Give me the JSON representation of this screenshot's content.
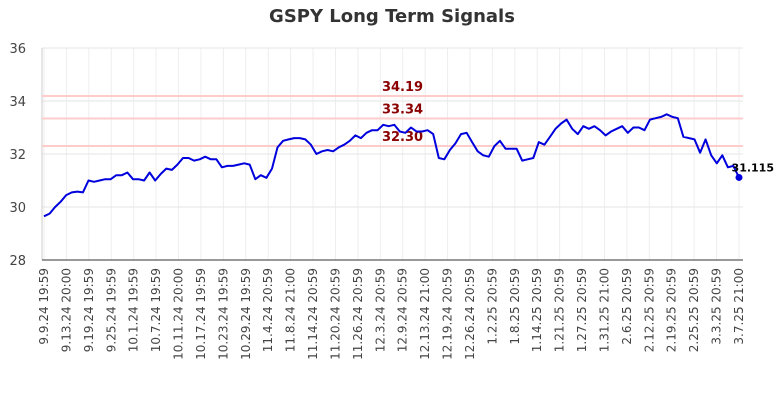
{
  "chart_data": {
    "type": "line",
    "title": "GSPY Long Term Signals",
    "xlabel": "",
    "ylabel": "",
    "ylim": [
      28,
      36
    ],
    "y_ticks": [
      28,
      30,
      32,
      34,
      36
    ],
    "grid": true,
    "x_tick_labels": [
      "9.9.24 19:59",
      "9.13.24 20:00",
      "9.19.24 19:59",
      "9.25.24 19:59",
      "10.1.24 19:59",
      "10.7.24 19:59",
      "10.11.24 20:00",
      "10.17.24 19:59",
      "10.23.24 19:59",
      "10.29.24 19:59",
      "11.4.24 20:59",
      "11.8.24 21:00",
      "11.14.24 20:59",
      "11.20.24 20:59",
      "11.26.24 20:59",
      "12.3.24 20:59",
      "12.9.24 20:59",
      "12.13.24 21:00",
      "12.19.24 20:59",
      "12.26.24 20:59",
      "1.2.25 20:59",
      "1.8.25 20:59",
      "1.14.25 20:59",
      "1.21.25 20:59",
      "1.27.25 20:59",
      "1.31.25 21:00",
      "2.6.25 20:59",
      "2.12.25 20:59",
      "2.19.25 20:59",
      "2.25.25 20:59",
      "3.3.25 20:59",
      "3.7.25 21:00"
    ],
    "levels": [
      {
        "value": 34.19,
        "label": "34.19",
        "color": "#ffcccc"
      },
      {
        "value": 33.34,
        "label": "33.34",
        "color": "#ffcccc"
      },
      {
        "value": 32.3,
        "label": "32.30",
        "color": "#ffcccc"
      }
    ],
    "line_color": "#0000dd",
    "last_value_label": "31.115",
    "series": [
      {
        "values": [
          29.65,
          29.75,
          30.0,
          30.2,
          30.45,
          30.55,
          30.58,
          30.55,
          31.0,
          30.95,
          31.0,
          31.05,
          31.05,
          31.2,
          31.2,
          31.3,
          31.05,
          31.05,
          31.0,
          31.3,
          31.0,
          31.25,
          31.45,
          31.4,
          31.6,
          31.85,
          31.85,
          31.75,
          31.8,
          31.9,
          31.8,
          31.8,
          31.5,
          31.55,
          31.55,
          31.6,
          31.65,
          31.6,
          31.05,
          31.2,
          31.1,
          31.45,
          32.25,
          32.5,
          32.55,
          32.6,
          32.6,
          32.55,
          32.35,
          32.0,
          32.1,
          32.15,
          32.1,
          32.25,
          32.35,
          32.5,
          32.7,
          32.6,
          32.8,
          32.9,
          32.9,
          33.1,
          33.05,
          33.1,
          32.85,
          32.8,
          33.0,
          32.85,
          32.85,
          32.9,
          32.75,
          31.85,
          31.8,
          32.15,
          32.4,
          32.75,
          32.8,
          32.45,
          32.1,
          31.95,
          31.9,
          32.3,
          32.5,
          32.2,
          32.2,
          32.2,
          31.75,
          31.8,
          31.85,
          32.45,
          32.35,
          32.65,
          32.95,
          33.15,
          33.3,
          32.95,
          32.75,
          33.05,
          32.95,
          33.05,
          32.9,
          32.7,
          32.85,
          32.95,
          33.05,
          32.8,
          33.0,
          33.0,
          32.9,
          33.3,
          33.35,
          33.4,
          33.5,
          33.4,
          33.35,
          32.65,
          32.6,
          32.55,
          32.05,
          32.55,
          31.95,
          31.65,
          31.95,
          31.5,
          31.55,
          31.115
        ]
      }
    ]
  }
}
